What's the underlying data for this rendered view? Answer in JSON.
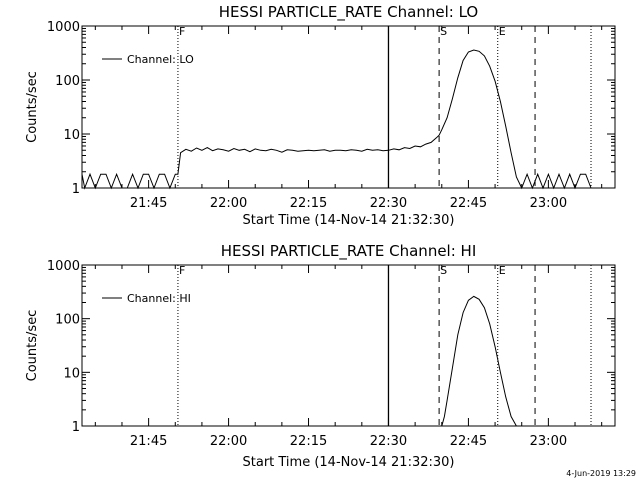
{
  "chart_data": [
    {
      "type": "line",
      "title": "HESSI PARTICLE_RATE Channel: LO",
      "xlabel": "Start Time (14-Nov-14 21:32:30)",
      "ylabel": "Counts/sec",
      "y_scale": "log",
      "xlim": [
        "21:32:30",
        "23:12:30"
      ],
      "ylim": [
        1,
        1000
      ],
      "x_ticks": [
        "21:45",
        "22:00",
        "22:15",
        "22:30",
        "22:45",
        "23:00"
      ],
      "y_ticks": [
        "1",
        "10",
        "100",
        "1000"
      ],
      "grid": false,
      "legend": {
        "position": "top-left",
        "entries": [
          "Channel: LO"
        ]
      },
      "markers": [
        {
          "time": "21:50:30",
          "style": "dotted",
          "label": "F"
        },
        {
          "time": "22:30:00",
          "style": "solid",
          "label": ""
        },
        {
          "time": "22:39:30",
          "style": "dashed",
          "label": "S"
        },
        {
          "time": "22:50:30",
          "style": "dotted",
          "label": "E"
        },
        {
          "time": "22:57:30",
          "style": "dashed",
          "label": ""
        },
        {
          "time": "23:08:00",
          "style": "dotted",
          "label": ""
        }
      ],
      "series": [
        {
          "name": "Channel: LO",
          "x": [
            "21:32:30",
            "21:33:00",
            "21:34:00",
            "21:35:00",
            "21:36:00",
            "21:37:00",
            "21:38:00",
            "21:39:00",
            "21:40:00",
            "21:41:00",
            "21:42:00",
            "21:43:00",
            "21:44:00",
            "21:45:00",
            "21:46:00",
            "21:47:00",
            "21:48:00",
            "21:49:00",
            "21:50:00",
            "21:50:30",
            "21:51:00",
            "21:52:00",
            "21:53:00",
            "21:54:00",
            "21:55:00",
            "21:56:00",
            "21:57:00",
            "21:58:00",
            "21:59:00",
            "22:00:00",
            "22:01:00",
            "22:02:00",
            "22:03:00",
            "22:04:00",
            "22:05:00",
            "22:06:00",
            "22:07:00",
            "22:08:00",
            "22:09:00",
            "22:10:00",
            "22:11:00",
            "22:12:00",
            "22:13:00",
            "22:14:00",
            "22:15:00",
            "22:16:00",
            "22:17:00",
            "22:18:00",
            "22:19:00",
            "22:20:00",
            "22:21:00",
            "22:22:00",
            "22:23:00",
            "22:24:00",
            "22:25:00",
            "22:26:00",
            "22:27:00",
            "22:28:00",
            "22:29:00",
            "22:30:00",
            "22:31:00",
            "22:32:00",
            "22:33:00",
            "22:34:00",
            "22:35:00",
            "22:36:00",
            "22:37:00",
            "22:38:00",
            "22:39:00",
            "22:39:30",
            "22:40:00",
            "22:41:00",
            "22:42:00",
            "22:43:00",
            "22:44:00",
            "22:45:00",
            "22:46:00",
            "22:47:00",
            "22:48:00",
            "22:49:00",
            "22:50:00",
            "22:51:00",
            "22:52:00",
            "22:53:00",
            "22:54:00",
            "22:55:00",
            "22:56:00",
            "22:57:00",
            "22:58:00",
            "22:59:00",
            "23:00:00",
            "23:01:00",
            "23:02:00",
            "23:03:00",
            "23:04:00",
            "23:05:00",
            "23:06:00",
            "23:07:00",
            "23:08:00"
          ],
          "y": [
            1.8,
            1.0,
            1.8,
            1.0,
            1.8,
            1.8,
            1.0,
            1.8,
            1.0,
            1.0,
            1.8,
            1.0,
            1.8,
            1.8,
            1.0,
            1.8,
            1.8,
            1.0,
            1.8,
            1.8,
            4.5,
            5.2,
            4.8,
            5.5,
            5.0,
            5.6,
            4.9,
            5.3,
            5.1,
            4.8,
            5.4,
            5.0,
            5.2,
            4.7,
            5.3,
            5.0,
            4.9,
            5.2,
            5.0,
            4.6,
            5.1,
            5.0,
            4.8,
            4.9,
            5.0,
            4.9,
            5.0,
            5.1,
            4.8,
            5.0,
            5.0,
            4.9,
            5.1,
            5.0,
            4.8,
            5.2,
            5.0,
            5.1,
            4.9,
            5.0,
            5.3,
            5.1,
            5.6,
            5.4,
            6.0,
            5.8,
            6.5,
            7.0,
            8.5,
            9.5,
            12,
            20,
            45,
            110,
            230,
            330,
            360,
            340,
            280,
            180,
            95,
            40,
            14,
            4.5,
            1.6,
            1.0,
            1.8,
            1.0,
            1.8,
            1.0,
            1.8,
            1.0,
            1.8,
            1.0,
            1.8,
            1.0,
            1.8,
            1.8,
            1.0
          ]
        }
      ]
    },
    {
      "type": "line",
      "title": "HESSI PARTICLE_RATE Channel: HI",
      "xlabel": "Start Time (14-Nov-14 21:32:30)",
      "ylabel": "Counts/sec",
      "y_scale": "log",
      "xlim": [
        "21:32:30",
        "23:12:30"
      ],
      "ylim": [
        1,
        1000
      ],
      "x_ticks": [
        "21:45",
        "22:00",
        "22:15",
        "22:30",
        "22:45",
        "23:00"
      ],
      "y_ticks": [
        "1",
        "10",
        "100",
        "1000"
      ],
      "grid": false,
      "legend": {
        "position": "top-left",
        "entries": [
          "Channel: HI"
        ]
      },
      "markers": [
        {
          "time": "21:50:30",
          "style": "dotted",
          "label": "F"
        },
        {
          "time": "22:30:00",
          "style": "solid",
          "label": ""
        },
        {
          "time": "22:39:30",
          "style": "dashed",
          "label": "S"
        },
        {
          "time": "22:50:30",
          "style": "dotted",
          "label": "E"
        },
        {
          "time": "22:57:30",
          "style": "dashed",
          "label": ""
        },
        {
          "time": "23:08:00",
          "style": "dotted",
          "label": ""
        }
      ],
      "series": [
        {
          "name": "Channel: HI",
          "x": [
            "22:40:00",
            "22:40:30",
            "22:41:00",
            "22:42:00",
            "22:43:00",
            "22:44:00",
            "22:45:00",
            "22:46:00",
            "22:47:00",
            "22:48:00",
            "22:49:00",
            "22:50:00",
            "22:51:00",
            "22:52:00",
            "22:53:00",
            "22:54:00"
          ],
          "y": [
            1.0,
            1.5,
            3,
            12,
            50,
            130,
            220,
            260,
            230,
            160,
            80,
            30,
            10,
            3.5,
            1.5,
            1.0
          ]
        }
      ]
    }
  ],
  "footer": {
    "date_stamp": "4-Jun-2019 13:29"
  }
}
